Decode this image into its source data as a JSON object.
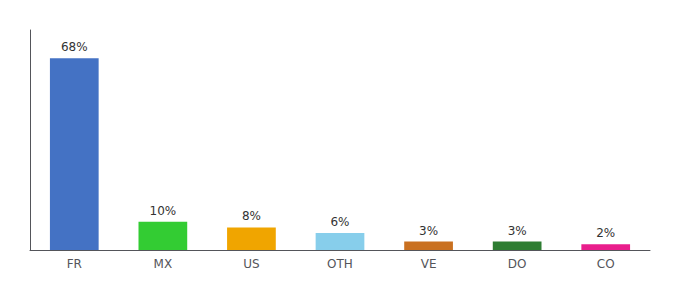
{
  "chart_data": {
    "type": "bar",
    "categories": [
      "FR",
      "MX",
      "US",
      "OTH",
      "VE",
      "DO",
      "CO"
    ],
    "values": [
      68,
      10,
      8,
      6,
      3,
      3,
      2
    ],
    "value_labels": [
      "68%",
      "10%",
      "8%",
      "6%",
      "3%",
      "3%",
      "2%"
    ],
    "colors": [
      "#4472c4",
      "#33cc33",
      "#f0a500",
      "#87ceeb",
      "#c97020",
      "#2e7d32",
      "#e91e8c"
    ],
    "data_labels": true,
    "ylim": [
      0,
      78
    ],
    "tick_labels": "x",
    "grid": false
  }
}
